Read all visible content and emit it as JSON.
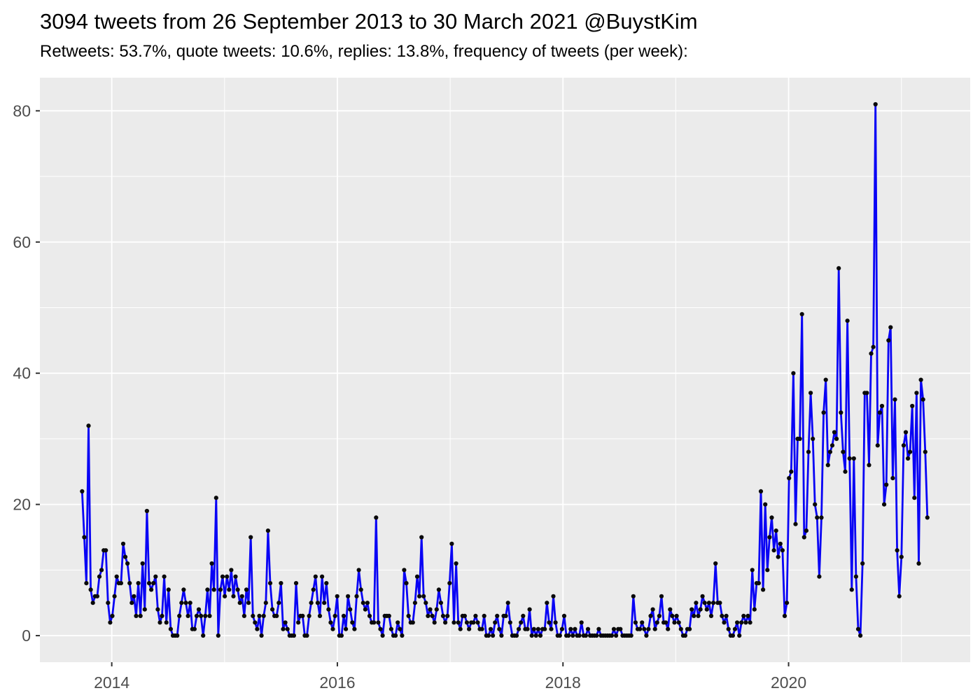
{
  "chart_data": {
    "type": "line",
    "title": "3094 tweets from 26 September 2013 to 30 March 2021 @BuystKim",
    "subtitle": "Retweets: 53.7%, quote tweets: 10.6%, replies: 13.8%, frequency of tweets (per week):",
    "account": "@BuystKim",
    "total_tweets": 3094,
    "retweets_pct": 53.7,
    "quote_tweets_pct": 10.6,
    "replies_pct": 13.8,
    "frequency_unit": "tweets per week",
    "start_date": "2013-09-26",
    "end_date": "2021-03-30",
    "interval": "weekly",
    "x_start_year": 2013.737,
    "x_step_years": 0.019165,
    "xlim": [
      2013.363,
      2021.61
    ],
    "ylim": [
      -4.05,
      85.05
    ],
    "x_major_ticks": [
      2014,
      2016,
      2018,
      2020
    ],
    "x_tick_labels": [
      "2014",
      "2016",
      "2018",
      "2020"
    ],
    "x_minor_gridlines": [
      2015,
      2017,
      2019,
      2021
    ],
    "y_major_ticks": [
      0,
      20,
      40,
      60,
      80
    ],
    "y_tick_labels": [
      "0",
      "20",
      "40",
      "60",
      "80"
    ],
    "y_minor_gridlines": [
      10,
      30,
      50,
      70
    ],
    "grid": true,
    "legend": "none",
    "colors": {
      "line": "#0903F5",
      "point": "#0A0A0A",
      "panel_bg": "#EBEBEB",
      "grid": "#FFFFFF",
      "tick": "#333333",
      "tick_label": "#4D4D4D",
      "title": "#000000"
    },
    "series": [
      {
        "name": "tweets per week",
        "values": [
          22,
          15,
          8,
          32,
          7,
          5,
          6,
          6,
          9,
          10,
          13,
          13,
          5,
          2,
          3,
          6,
          9,
          8,
          8,
          14,
          12,
          11,
          8,
          5,
          6,
          3,
          8,
          3,
          11,
          4,
          19,
          8,
          7,
          8,
          9,
          4,
          2,
          3,
          9,
          2,
          7,
          1,
          0,
          0,
          0,
          3,
          5,
          7,
          5,
          3,
          5,
          1,
          1,
          3,
          4,
          3,
          0,
          3,
          7,
          3,
          11,
          7,
          21,
          0,
          7,
          9,
          6,
          9,
          7,
          10,
          6,
          9,
          7,
          5,
          6,
          3,
          7,
          5,
          15,
          3,
          2,
          1,
          3,
          0,
          3,
          5,
          16,
          8,
          4,
          3,
          3,
          5,
          8,
          1,
          2,
          1,
          0,
          0,
          0,
          8,
          2,
          3,
          3,
          0,
          0,
          3,
          5,
          7,
          9,
          5,
          3,
          9,
          5,
          8,
          4,
          2,
          1,
          3,
          6,
          0,
          0,
          3,
          1,
          6,
          4,
          2,
          1,
          6,
          10,
          7,
          5,
          4,
          5,
          3,
          2,
          2,
          18,
          2,
          1,
          0,
          3,
          3,
          3,
          1,
          0,
          0,
          2,
          1,
          0,
          10,
          8,
          3,
          2,
          2,
          5,
          9,
          6,
          15,
          6,
          5,
          3,
          4,
          3,
          2,
          4,
          7,
          5,
          3,
          2,
          3,
          8,
          14,
          2,
          11,
          2,
          1,
          3,
          3,
          2,
          1,
          2,
          2,
          3,
          2,
          1,
          1,
          3,
          0,
          0,
          1,
          0,
          2,
          3,
          1,
          0,
          3,
          3,
          5,
          2,
          0,
          0,
          0,
          1,
          2,
          3,
          1,
          1,
          4,
          0,
          1,
          0,
          1,
          0,
          1,
          1,
          5,
          2,
          1,
          6,
          2,
          0,
          0,
          1,
          3,
          0,
          0,
          1,
          0,
          1,
          0,
          0,
          2,
          0,
          0,
          1,
          0,
          0,
          0,
          0,
          1,
          0,
          0,
          0,
          0,
          0,
          0,
          1,
          0,
          1,
          1,
          0,
          0,
          0,
          0,
          0,
          6,
          2,
          1,
          1,
          2,
          1,
          0,
          1,
          3,
          4,
          1,
          2,
          3,
          6,
          2,
          2,
          1,
          4,
          3,
          2,
          3,
          2,
          1,
          0,
          0,
          1,
          1,
          4,
          3,
          5,
          3,
          4,
          6,
          5,
          4,
          5,
          3,
          5,
          11,
          5,
          5,
          3,
          2,
          3,
          1,
          0,
          0,
          1,
          2,
          0,
          2,
          3,
          2,
          3,
          2,
          10,
          4,
          8,
          8,
          22,
          7,
          20,
          10,
          15,
          18,
          13,
          16,
          12,
          14,
          13,
          3,
          5,
          24,
          25,
          40,
          17,
          30,
          30,
          49,
          15,
          16,
          28,
          37,
          30,
          20,
          18,
          9,
          18,
          34,
          39,
          26,
          28,
          29,
          31,
          30,
          56,
          34,
          28,
          25,
          48,
          27,
          7,
          27,
          9,
          1,
          0,
          11,
          37,
          37,
          26,
          43,
          44,
          81,
          29,
          34,
          35,
          20,
          23,
          45,
          47,
          24,
          36,
          13,
          6,
          12,
          29,
          31,
          27,
          28,
          35,
          21,
          37,
          11,
          39,
          36,
          28,
          18
        ]
      }
    ]
  }
}
